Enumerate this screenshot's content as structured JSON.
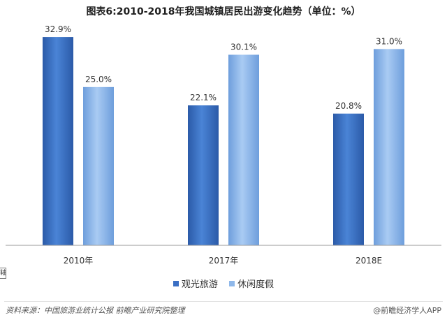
{
  "title": "图表6:2010-2018年我国城镇居民出游变化趋势（单位：%）",
  "chart_data": {
    "type": "bar",
    "categories": [
      "2010年",
      "2017年",
      "2018E"
    ],
    "series": [
      {
        "name": "观光旅游",
        "values": [
          32.9,
          22.1,
          20.8
        ],
        "color": "#3a6fc4"
      },
      {
        "name": "休闲度假",
        "values": [
          25.0,
          30.1,
          31.0
        ],
        "color": "#8fb8ea"
      }
    ],
    "labels": [
      [
        "32.9%",
        "22.1%",
        "20.8%"
      ],
      [
        "25.0%",
        "30.1%",
        "31.0%"
      ]
    ],
    "ylim": [
      0,
      35
    ],
    "grid": false,
    "legend": "bottom"
  },
  "axis_fragment": "轴",
  "source": "资料来源：中国旅游业统计公报 前瞻产业研究院整理",
  "credit": "@前瞻经济学人APP"
}
